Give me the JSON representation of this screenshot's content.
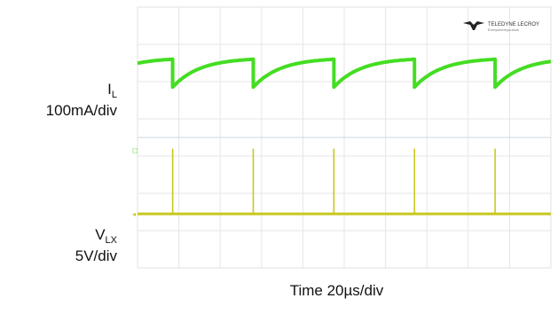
{
  "chart_data": {
    "type": "line",
    "title": "",
    "xlabel": "Time 20µs/div",
    "channels": [
      {
        "name_main": "I",
        "name_sub": "L",
        "scale": "100mA/div",
        "color": "#44dd22",
        "waveform": "sawtooth",
        "period_div": 1.95,
        "first_drop_div": 0.85,
        "min_level_div": 2.15,
        "max_level_div": 1.4
      },
      {
        "name_main": "V",
        "name_sub": "LX",
        "scale": "5V/div",
        "color": "#c8c820",
        "waveform": "pulse",
        "period_div": 1.95,
        "first_pulse_div": 0.85,
        "base_level_div": 5.55,
        "peak_level_div": 3.8
      }
    ],
    "x_divisions": 10,
    "y_divisions": 7,
    "grid": true,
    "logo_text": "TELEDYNE LECROY"
  }
}
